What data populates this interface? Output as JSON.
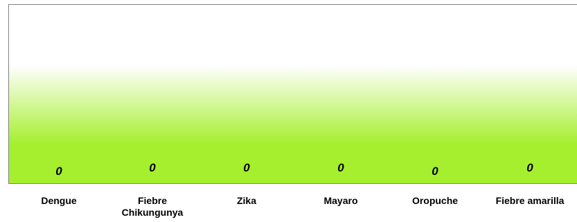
{
  "chart_data": {
    "type": "bar",
    "categories": [
      "Dengue",
      "Fiebre\nChikungunya",
      "Zika",
      "Mayaro",
      "Oropuche",
      "Fiebre amarilla"
    ],
    "values": [
      0,
      0,
      0,
      0,
      0,
      0
    ],
    "data_labels": [
      "0",
      "0",
      "0",
      "0",
      "0",
      "0"
    ],
    "title": "",
    "xlabel": "",
    "ylabel": "",
    "legend": "none",
    "grid": false
  },
  "colors": {
    "plot_gradient_top": "#ffffff",
    "plot_gradient_bottom": "#a6ef2e",
    "axis": "#808080"
  }
}
